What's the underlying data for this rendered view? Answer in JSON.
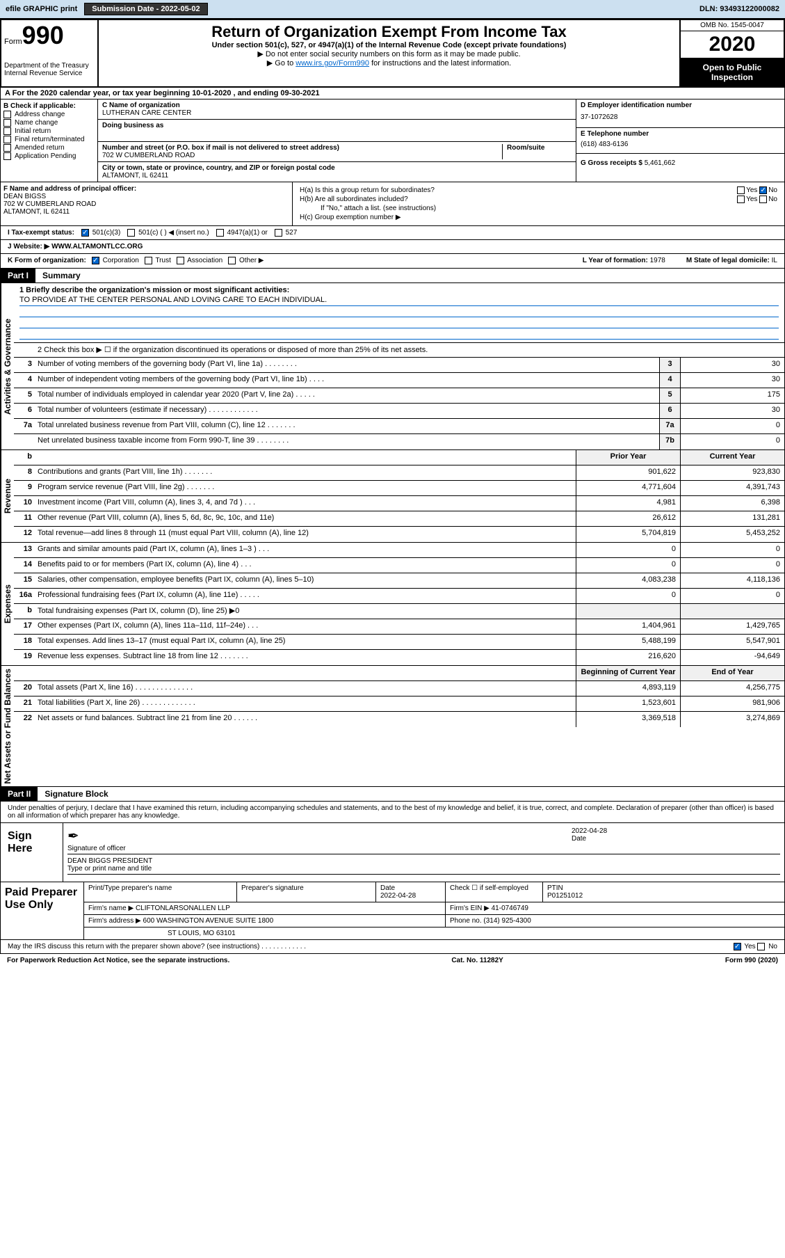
{
  "colors": {
    "accent": "#0066cc",
    "header_bg": "#cce0f0",
    "black": "#000000",
    "gray_bg": "#f0f0f0"
  },
  "header": {
    "efile": "efile GRAPHIC print",
    "submission_label": "Submission Date - 2022-05-02",
    "dln": "DLN: 93493122000082"
  },
  "top": {
    "form_word": "Form",
    "form_num": "990",
    "dept": "Department of the Treasury\nInternal Revenue Service",
    "title": "Return of Organization Exempt From Income Tax",
    "sub": "Under section 501(c), 527, or 4947(a)(1) of the Internal Revenue Code (except private foundations)",
    "note1": "▶ Do not enter social security numbers on this form as it may be made public.",
    "note2_pre": "▶ Go to ",
    "note2_link": "www.irs.gov/Form990",
    "note2_post": " for instructions and the latest information.",
    "omb": "OMB No. 1545-0047",
    "year": "2020",
    "inspect": "Open to Public Inspection"
  },
  "rowA": "A   For the 2020 calendar year, or tax year beginning 10-01-2020   , and ending 09-30-2021",
  "B": {
    "label": "B Check if applicable:",
    "items": [
      "Address change",
      "Name change",
      "Initial return",
      "Final return/terminated",
      "Amended return",
      "Application Pending"
    ]
  },
  "C": {
    "name_lbl": "C Name of organization",
    "name": "LUTHERAN CARE CENTER",
    "dba_lbl": "Doing business as",
    "street_lbl": "Number and street (or P.O. box if mail is not delivered to street address)",
    "room_lbl": "Room/suite",
    "street": "702 W CUMBERLAND ROAD",
    "city_lbl": "City or town, state or province, country, and ZIP or foreign postal code",
    "city": "ALTAMONT, IL  62411"
  },
  "D": {
    "lbl": "D Employer identification number",
    "val": "37-1072628"
  },
  "E": {
    "lbl": "E Telephone number",
    "val": "(618) 483-6136"
  },
  "G": {
    "lbl": "G Gross receipts $",
    "val": "5,461,662"
  },
  "F": {
    "lbl": "F  Name and address of principal officer:",
    "name": "DEAN BIGSS",
    "street": "702 W CUMBERLAND ROAD",
    "city": "ALTAMONT, IL  62411"
  },
  "H": {
    "a": "H(a)  Is this a group return for subordinates?",
    "a_no": "No",
    "b": "H(b)  Are all subordinates included?",
    "b_note": "If \"No,\" attach a list. (see instructions)",
    "c": "H(c)  Group exemption number ▶",
    "yes": "Yes",
    "no": "No"
  },
  "I": {
    "lbl": "I    Tax-exempt status:",
    "opts": [
      "501(c)(3)",
      "501(c) (   ) ◀ (insert no.)",
      "4947(a)(1) or",
      "527"
    ]
  },
  "J": {
    "lbl": "J    Website: ▶",
    "val": "WWW.ALTAMONTLCC.ORG"
  },
  "K": {
    "lbl": "K Form of organization:",
    "opts": [
      "Corporation",
      "Trust",
      "Association",
      "Other ▶"
    ]
  },
  "L": {
    "lbl": "L Year of formation:",
    "val": "1978"
  },
  "M": {
    "lbl": "M State of legal domicile:",
    "val": "IL"
  },
  "part1": {
    "hdr": "Part I",
    "title": "Summary"
  },
  "summary": {
    "q1_lbl": "1   Briefly describe the organization's mission or most significant activities:",
    "q1_val": "TO PROVIDE AT THE CENTER PERSONAL AND LOVING CARE TO EACH INDIVIDUAL.",
    "q2": "2    Check this box ▶ ☐  if the organization discontinued its operations or disposed of more than 25% of its net assets.",
    "rows_ag": [
      {
        "n": "3",
        "d": "Number of voting members of the governing body (Part VI, line 1a)   .   .   .   .   .   .   .   .",
        "b": "3",
        "v": "30"
      },
      {
        "n": "4",
        "d": "Number of independent voting members of the governing body (Part VI, line 1b)   .   .   .   .",
        "b": "4",
        "v": "30"
      },
      {
        "n": "5",
        "d": "Total number of individuals employed in calendar year 2020 (Part V, line 2a)   .   .   .   .   .",
        "b": "5",
        "v": "175"
      },
      {
        "n": "6",
        "d": "Total number of volunteers (estimate if necessary)   .   .   .   .   .   .   .   .   .   .   .   .",
        "b": "6",
        "v": "30"
      },
      {
        "n": "7a",
        "d": "Total unrelated business revenue from Part VIII, column (C), line 12   .   .   .   .   .   .   .",
        "b": "7a",
        "v": "0"
      },
      {
        "n": "",
        "d": "Net unrelated business taxable income from Form 990-T, line 39   .   .   .   .   .   .   .   .",
        "b": "7b",
        "v": "0"
      }
    ],
    "col_prior": "Prior Year",
    "col_current": "Current Year",
    "rows_rev": [
      {
        "n": "8",
        "d": "Contributions and grants (Part VIII, line 1h)   .   .   .   .   .   .   .",
        "p": "901,622",
        "c": "923,830"
      },
      {
        "n": "9",
        "d": "Program service revenue (Part VIII, line 2g)   .   .   .   .   .   .   .",
        "p": "4,771,604",
        "c": "4,391,743"
      },
      {
        "n": "10",
        "d": "Investment income (Part VIII, column (A), lines 3, 4, and 7d )   .   .   .",
        "p": "4,981",
        "c": "6,398"
      },
      {
        "n": "11",
        "d": "Other revenue (Part VIII, column (A), lines 5, 6d, 8c, 9c, 10c, and 11e)",
        "p": "26,612",
        "c": "131,281"
      },
      {
        "n": "12",
        "d": "Total revenue—add lines 8 through 11 (must equal Part VIII, column (A), line 12)",
        "p": "5,704,819",
        "c": "5,453,252"
      }
    ],
    "rows_exp": [
      {
        "n": "13",
        "d": "Grants and similar amounts paid (Part IX, column (A), lines 1–3 )   .   .   .",
        "p": "0",
        "c": "0"
      },
      {
        "n": "14",
        "d": "Benefits paid to or for members (Part IX, column (A), line 4)   .   .   .",
        "p": "0",
        "c": "0"
      },
      {
        "n": "15",
        "d": "Salaries, other compensation, employee benefits (Part IX, column (A), lines 5–10)",
        "p": "4,083,238",
        "c": "4,118,136"
      },
      {
        "n": "16a",
        "d": "Professional fundraising fees (Part IX, column (A), line 11e)   .   .   .   .   .",
        "p": "0",
        "c": "0"
      },
      {
        "n": "b",
        "d": "Total fundraising expenses (Part IX, column (D), line 25) ▶0",
        "p": "",
        "c": ""
      },
      {
        "n": "17",
        "d": "Other expenses (Part IX, column (A), lines 11a–11d, 11f–24e)   .   .   .",
        "p": "1,404,961",
        "c": "1,429,765"
      },
      {
        "n": "18",
        "d": "Total expenses. Add lines 13–17 (must equal Part IX, column (A), line 25)",
        "p": "5,488,199",
        "c": "5,547,901"
      },
      {
        "n": "19",
        "d": "Revenue less expenses. Subtract line 18 from line 12   .   .   .   .   .   .   .",
        "p": "216,620",
        "c": "-94,649"
      }
    ],
    "col_boy": "Beginning of Current Year",
    "col_eoy": "End of Year",
    "rows_na": [
      {
        "n": "20",
        "d": "Total assets (Part X, line 16)   .   .   .   .   .   .   .   .   .   .   .   .   .   .",
        "p": "4,893,119",
        "c": "4,256,775"
      },
      {
        "n": "21",
        "d": "Total liabilities (Part X, line 26)   .   .   .   .   .   .   .   .   .   .   .   .   .",
        "p": "1,523,601",
        "c": "981,906"
      },
      {
        "n": "22",
        "d": "Net assets or fund balances. Subtract line 21 from line 20   .   .   .   .   .   .",
        "p": "3,369,518",
        "c": "3,274,869"
      }
    ],
    "vlab_ag": "Activities & Governance",
    "vlab_rev": "Revenue",
    "vlab_exp": "Expenses",
    "vlab_na": "Net Assets or Fund Balances"
  },
  "part2": {
    "hdr": "Part II",
    "title": "Signature Block"
  },
  "sig": {
    "decl": "Under penalties of perjury, I declare that I have examined this return, including accompanying schedules and statements, and to the best of my knowledge and belief, it is true, correct, and complete. Declaration of preparer (other than officer) is based on all information of which preparer has any knowledge.",
    "sign_here": "Sign Here",
    "sig_of_officer": "Signature of officer",
    "date_lbl": "Date",
    "date_val": "2022-04-28",
    "name": "DEAN BIGGS  PRESIDENT",
    "name_lbl": "Type or print name and title"
  },
  "prep": {
    "label": "Paid Preparer Use Only",
    "h_name": "Print/Type preparer's name",
    "h_sig": "Preparer's signature",
    "h_date": "Date",
    "date_val": "2022-04-28",
    "h_check": "Check ☐ if self-employed",
    "h_ptin": "PTIN",
    "ptin_val": "P01251012",
    "firm_name_lbl": "Firm's name      ▶",
    "firm_name": "CLIFTONLARSONALLEN LLP",
    "firm_ein_lbl": "Firm's EIN ▶",
    "firm_ein": "41-0746749",
    "firm_addr_lbl": "Firm's address ▶",
    "firm_addr1": "600 WASHINGTON AVENUE SUITE 1800",
    "firm_addr2": "ST LOUIS, MO  63101",
    "phone_lbl": "Phone no.",
    "phone": "(314) 925-4300"
  },
  "irs_discuss": "May the IRS discuss this return with the preparer shown above? (see instructions)   .   .   .   .   .   .   .   .   .   .   .   .",
  "footer": {
    "pra": "For Paperwork Reduction Act Notice, see the separate instructions.",
    "cat": "Cat. No. 11282Y",
    "form": "Form 990 (2020)"
  }
}
